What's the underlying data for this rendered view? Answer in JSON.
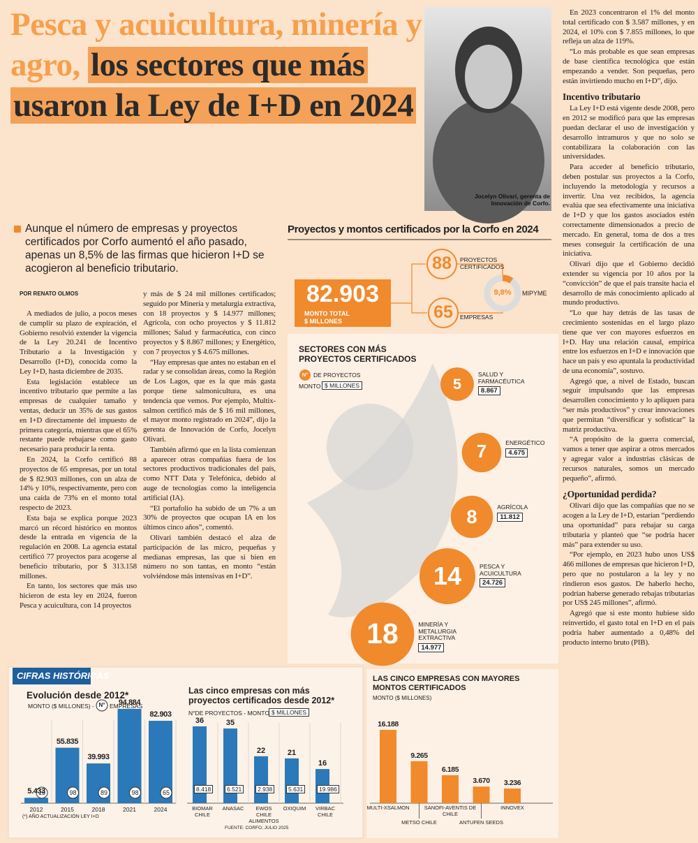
{
  "headline": {
    "highlight": "Pesca y acuicultura, minería y agro,",
    "main": "los sectores que más usaron la Ley de I+D en 2024"
  },
  "photo_caption": "Jocelyn Olivari, gerenta de Innovación de Corfo.",
  "lead": "Aunque el número de empresas y proyectos certificados por Corfo aumentó el año pasado, apenas un 8,5% de las firmas que hicieron I+D se acogieron al beneficio tributario.",
  "byline": "POR RENATO OLMOS",
  "body": {
    "col1": [
      "A mediados de julio, a pocos meses de cumplir su plazo de expiración, el Gobierno resolvió extender la vigencia de la Ley 20.241 de Incentivo Tributario a la Investigación y Desarrollo (I+D), conocida como la Ley I+D, hasta diciembre de 2035.",
      "Esta legislación establece un incentivo tributario que permite a las empresas de cualquier tamaño y ventas, deducir un 35% de sus gastos en I+D directamente del impuesto de primera categoría, mientras que el 65% restante puede rebajarse como gasto necesario para producir la renta.",
      "En 2024, la Corfo certificó 88 proyectos de 65 empresas, por un total de $ 82.903 millones, con un alza de 14% y 10%, respectivamente, pero con una caída de 73% en el monto total respecto de 2023.",
      "Esta baja se explica porque 2023 marcó un récord histórico en montos desde la entrada en vigencia de la regulación en 2008. La agencia estatal certificó 77 proyectos para acogerse al beneficio tributario, por $ 313.158 millones.",
      "En tanto, los sectores que más uso hicieron de esta ley en 2024, fueron Pesca y acuicultura, con 14 proyectos"
    ],
    "col2": [
      "y más de $ 24 mil millones certificados; seguido por Minería y metalurgia extractiva, con 18 proyectos y $ 14.977 millones; Agrícola, con ocho proyectos y $ 11.812 millones; Salud y farmacéutica, con cinco proyectos y $ 8.867 millones; y Energético, con 7 proyectos y $ 4.675 millones.",
      "“Hay empresas que antes no estaban en el radar y se consolidan áreas, como la Región de Los Lagos, que es la que más gasta porque tiene salmonicultura, es una tendencia que vemos. Por ejemplo, Multix-salmon certificó más de $ 16 mil millones, el mayor monto registrado en 2024”, dijo la gerenta de Innovación de Corfo, Jocelyn Olivari.",
      "También afirmó que en la lista comienzan a aparecer otras compañías fuera de los sectores productivos tradicionales del país, como NTT Data y Telefónica, debido al auge de tecnologías como la inteligencia artificial (IA).",
      "“El portafolio ha subido de un 7% a un 30% de proyectos que ocupan IA en los últimos cinco años”, comentó.",
      "Olivari también destacó el alza de participación de las micro, pequeñas y medianas empresas, las que si bien en número no son tantas, en monto “están volviéndose más intensivas en I+D”."
    ],
    "col3": [
      {
        "text": "En 2023 concentraron el 1% del monto total certificado con $ 3.587 millones, y en 2024, el 10% con $ 7.855 millones, lo que refleja un alza de 119%."
      },
      {
        "text": "“Lo más probable es que sean empresas de base científica tecnológica que están empezando a vender. Son pequeñas, pero están invirtiendo mucho en I+D”, dijo."
      },
      {
        "heading": "Incentivo tributario"
      },
      {
        "text": "La Ley I+D está vigente desde 2008, pero en 2012 se modificó para que las empresas puedan declarar el uso de investigación y desarrollo intramuros y que no solo se contabilizara la colaboración con las universidades."
      },
      {
        "text": "Para acceder al beneficio tributario, deben postular sus proyectos a la Corfo, incluyendo la metodología y recursos a invertir. Una vez recibidos, la agencia evalúa que sea efectivamente una iniciativa de I+D y que los gastos asociados estén correctamente dimensionados a precio de mercado. En general, toma de dos a tres meses conseguir la certificación de una iniciativa."
      },
      {
        "text": "Olivari dijo que el Gobierno decidió extender su vigencia por 10 años por la “convicción” de que el país transite hacia el desarrollo de más conocimiento aplicado al mundo productivo."
      },
      {
        "text": "“Lo que hay detrás de las tasas de crecimiento sostenidas en el largo plazo tiene que ver con mayores esfuerzos en I+D. Hay una relación causal, empírica entre los esfuerzos en I+D e innovación que hace un país y eso apuntala la productividad de una economía”, sostuvo."
      },
      {
        "text": "Agregó que, a nivel de Estado, buscan seguir impulsando que las empresas desarrollen conocimiento y lo apliquen para “ser más productivos” y crear innovaciones que permitan “diversificar y sofisticar” la matriz productiva."
      },
      {
        "text": "“A propósito de la guerra comercial, vamos a tener que aspirar a otros mercados y agregar valor a industrias clásicas de recursos naturales, somos un mercado pequeño”, afirmó."
      },
      {
        "heading": "¿Oportunidad perdida?"
      },
      {
        "text": "Olivari dijo que las compañías que no se acogen a la Ley de I+D, estarían “perdiendo una oportunidad” para rebajar su carga tributaria y planteó que “se podría hacer más” para extender su uso."
      },
      {
        "text": "“Por ejemplo, en 2023 hubo unos US$ 466 millones de empresas que hicieron I+D, pero que no postularon a la ley y no rindieron esos gastos. De haberlo hecho, podrían haberse generado rebajas tributarias por US$ 245 millones”, afirmó."
      },
      {
        "text": "Agregó que si este monto hubiese sido reinvertido, el gasto total en I+D en el país podría haber aumentado a 0,48% del producto interno bruto (PIB)."
      }
    ]
  },
  "infographic": {
    "title": "Proyectos y montos certificados por la Corfo en 2024",
    "total": {
      "value": "82.903",
      "label": "MONTO TOTAL",
      "unit": "$ MILLONES"
    },
    "projects": {
      "value": "88",
      "label": "PROYECTOS CERTIFICADOS"
    },
    "companies": {
      "value": "65",
      "label": "EMPRESAS"
    },
    "mipyme": {
      "value": 9.8,
      "value_label": "9,8%",
      "label": "MIPYME"
    },
    "sectors_title": "SECTORES CON MÁS PROYECTOS CERTIFICADOS",
    "legend": {
      "badge": "N°",
      "projects": "DE PROYECTOS",
      "amount": "MONTO",
      "amount_unit": "$ MILLONES"
    },
    "sectors": [
      {
        "name": "SALUD Y FARMACÉUTICA",
        "projects": 5,
        "amount": "8.867"
      },
      {
        "name": "ENERGÉTICO",
        "projects": 7,
        "amount": "4.675"
      },
      {
        "name": "AGRÍCOLA",
        "projects": 8,
        "amount": "11.812"
      },
      {
        "name": "PESCA Y ACUICULTURA",
        "projects": 14,
        "amount": "24.726"
      },
      {
        "name": "MINERÍA Y METALURGIA EXTRACTIVA",
        "projects": 18,
        "amount": "14.977"
      }
    ]
  },
  "historic_panel_title": "CIFRAS HISTÓRICAS",
  "chart_data": [
    {
      "type": "bar",
      "title": "Evolución desde 2012*",
      "legend_badge": "N°",
      "categories": [
        "2012",
        "2015",
        "2018",
        "2021",
        "2024"
      ],
      "series": [
        {
          "name": "MONTO ($ MILLONES) -",
          "color": "#2b79b8",
          "values": [
            5433,
            55835,
            39993,
            94884,
            82903
          ],
          "value_labels": [
            "5.433",
            "55.835",
            "39.993",
            "94.884",
            "82.903"
          ]
        },
        {
          "name": "EMPRESAS",
          "color": "#2b79b8",
          "values": [
            15,
            98,
            89,
            98,
            65
          ]
        }
      ],
      "note": "(*) AÑO ACTUALIZACIÓN LEY I+D"
    },
    {
      "type": "bar",
      "title": "Las cinco empresas con más proyectos certificados desde 2012*",
      "categories": [
        "BIOMAR CHILE",
        "ANASAC",
        "EWOS CHILE ALIMENTOS",
        "OXIQUIM",
        "VIRBAC CHILE"
      ],
      "series": [
        {
          "name": "N°DE PROYECTOS - MONTO",
          "color": "#2b79b8",
          "values": [
            36,
            35,
            22,
            21,
            16
          ]
        },
        {
          "name": "$ MILLONES",
          "color": "#ffffff",
          "values": [
            8418,
            6521,
            2938,
            5631,
            19986
          ],
          "value_labels": [
            "8.418",
            "6.521",
            "2.938",
            "5.631",
            "19.986"
          ]
        }
      ],
      "source": "FUENTE: CORFO, JULIO 2025"
    },
    {
      "type": "bar",
      "title": "LAS CINCO EMPRESAS CON MAYORES MONTOS CERTIFICADOS",
      "subtitle": "MONTO ($ MILLONES)",
      "categories": [
        "MULTI-XSALMON",
        "METSO CHILE",
        "SANOFI-AVENTIS DE CHILE",
        "ANTUFEN SEEDS",
        "INNOVEX"
      ],
      "color": "#f08a2c",
      "values": [
        16188,
        9265,
        6185,
        3670,
        3236
      ],
      "value_labels": [
        "16.188",
        "9.265",
        "6.185",
        "3.670",
        "3.236"
      ]
    }
  ]
}
